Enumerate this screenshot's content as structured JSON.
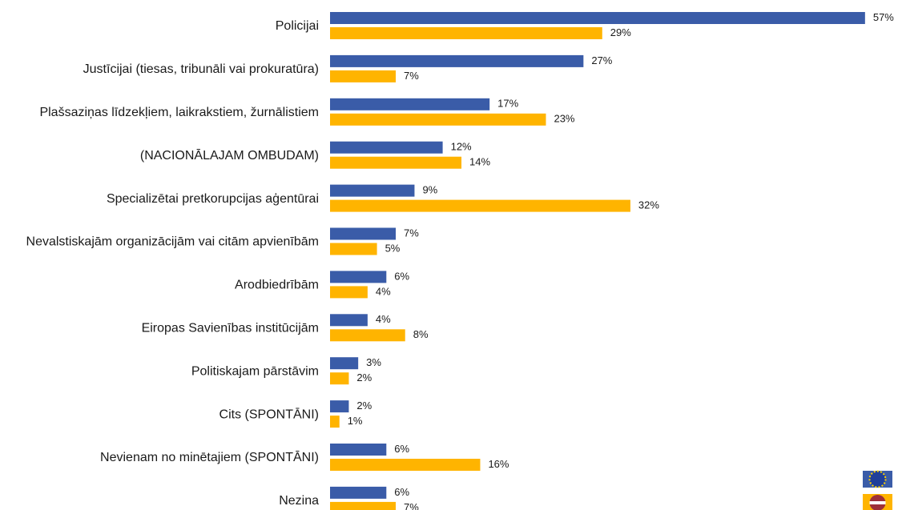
{
  "chart_data": {
    "type": "bar",
    "orientation": "horizontal",
    "categories": [
      "Policijai",
      "Justīcijai (tiesas, tribunāli vai prokuratūra)",
      "Plašsaziņas līdzekļiem, laikrakstiem, žurnālistiem",
      "(NACIONĀLAJAM OMBUDAM)",
      "Specializētai pretkorupcijas aģentūrai",
      "Nevalstiskajām organizācijām vai citām apvienībām",
      "Arodbiedrībām",
      "Eiropas Savienības institūcijām",
      "Politiskajam pārstāvim",
      "Cits (SPONTĀNI)",
      "Nevienam no minētajiem (SPONTĀNI)",
      "Nezina"
    ],
    "series": [
      {
        "color": "#3a5ca8",
        "values": [
          57,
          27,
          17,
          12,
          9,
          7,
          6,
          4,
          3,
          2,
          6,
          6
        ],
        "value_labels": [
          "57%",
          "27%",
          "17%",
          "12%",
          "9%",
          "7%",
          "6%",
          "4%",
          "3%",
          "2%",
          "6%",
          "6%"
        ]
      },
      {
        "color": "#ffb400",
        "values": [
          29,
          7,
          23,
          14,
          32,
          5,
          4,
          8,
          2,
          1,
          16,
          7
        ],
        "value_labels": [
          "29%",
          "7%",
          "23%",
          "14%",
          "32%",
          "5%",
          "4%",
          "8%",
          "2%",
          "1%",
          "16%",
          "7%"
        ]
      }
    ],
    "xlim": [
      0,
      60
    ]
  }
}
